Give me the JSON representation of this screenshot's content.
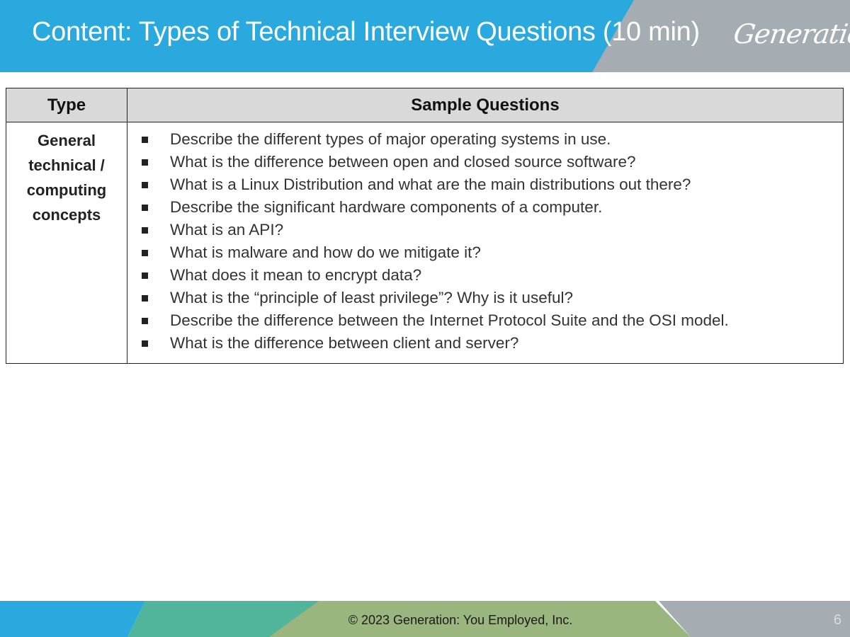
{
  "header": {
    "title": "Content: Types of Technical Interview Questions (10 min)",
    "logo_text": "Generation",
    "colors": {
      "band_blue": "#2aa9df",
      "band_gray": "#a5adb3"
    }
  },
  "table": {
    "headers": [
      "Type",
      "Sample Questions"
    ],
    "rows": [
      {
        "type": "General technical / computing concepts",
        "questions": [
          "Describe the different types of major operating systems in use.",
          "What is the difference between open and closed source software?",
          "What is a Linux Distribution and what are the main distributions out there?",
          "Describe the significant hardware components of a computer.",
          "What is an API?",
          "What is malware and how do we mitigate it?",
          "What does it mean to encrypt data?",
          "What is the “principle of least privilege”? Why is it useful?",
          "Describe the difference between the Internet Protocol Suite and the OSI model.",
          "What is the difference between client and server?"
        ]
      }
    ]
  },
  "footer": {
    "copyright": "© 2023 Generation: You Employed, Inc.",
    "page_number": "6",
    "colors": {
      "blue": "#2aa9df",
      "teal": "#50b59a",
      "olive": "#9ab57d",
      "gray": "#a5adb3"
    }
  }
}
